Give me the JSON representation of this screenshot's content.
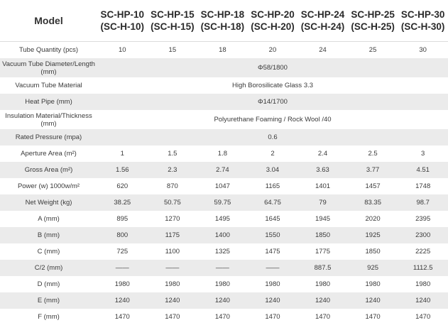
{
  "table": {
    "header_label": "Model",
    "models": [
      {
        "name": "SC-HP-10",
        "alt": "(SC-H-10)"
      },
      {
        "name": "SC-HP-15",
        "alt": "(SC-H-15)"
      },
      {
        "name": "SC-HP-18",
        "alt": "(SC-H-18)"
      },
      {
        "name": "SC-HP-20",
        "alt": "(SC-H-20)"
      },
      {
        "name": "SC-HP-24",
        "alt": "(SC-H-24)"
      },
      {
        "name": "SC-HP-25",
        "alt": "(SC-H-25)"
      },
      {
        "name": "SC-HP-30",
        "alt": "(SC-H-30)"
      }
    ],
    "rows": [
      {
        "label": "Tube Quantity (pcs)",
        "values": [
          "10",
          "15",
          "18",
          "20",
          "24",
          "25",
          "30"
        ]
      },
      {
        "label": "Vacuum Tube Diameter/Length (mm)",
        "merged": "Φ58/1800",
        "tall": true
      },
      {
        "label": "Vacuum Tube Material",
        "merged": "High Borosilicate Glass 3.3"
      },
      {
        "label": "Heat Pipe (mm)",
        "merged": "Φ14/1700"
      },
      {
        "label": "Insulation Material/Thickness (mm)",
        "merged": "Polyurethane Foaming / Rock Wool /40",
        "tall": true
      },
      {
        "label": "Rated Pressure (mpa)",
        "merged": "0.6"
      },
      {
        "label": "Aperture Area (m²)",
        "values": [
          "1",
          "1.5",
          "1.8",
          "2",
          "2.4",
          "2.5",
          "3"
        ]
      },
      {
        "label": "Gross Area (m²)",
        "values": [
          "1.56",
          "2.3",
          "2.74",
          "3.04",
          "3.63",
          "3.77",
          "4.51"
        ]
      },
      {
        "label": "Power  (w) 1000w/m²",
        "values": [
          "620",
          "870",
          "1047",
          "1165",
          "1401",
          "1457",
          "1748"
        ]
      },
      {
        "label": "Net Weight (kg)",
        "values": [
          "38.25",
          "50.75",
          "59.75",
          "64.75",
          "79",
          "83.35",
          "98.7"
        ]
      },
      {
        "label": "A  (mm)",
        "values": [
          "895",
          "1270",
          "1495",
          "1645",
          "1945",
          "2020",
          "2395"
        ]
      },
      {
        "label": "B  (mm)",
        "values": [
          "800",
          "1175",
          "1400",
          "1550",
          "1850",
          "1925",
          "2300"
        ]
      },
      {
        "label": "C  (mm)",
        "values": [
          "725",
          "1100",
          "1325",
          "1475",
          "1775",
          "1850",
          "2225"
        ]
      },
      {
        "label": "C/2 (mm)",
        "values": [
          "——",
          "——",
          "——",
          "——",
          "887.5",
          "925",
          "1112.5"
        ]
      },
      {
        "label": "D  (mm)",
        "values": [
          "1980",
          "1980",
          "1980",
          "1980",
          "1980",
          "1980",
          "1980"
        ]
      },
      {
        "label": "E  (mm)",
        "values": [
          "1240",
          "1240",
          "1240",
          "1240",
          "1240",
          "1240",
          "1240"
        ]
      },
      {
        "label": "F  (mm)",
        "values": [
          "1470",
          "1470",
          "1470",
          "1470",
          "1470",
          "1470",
          "1470"
        ]
      }
    ]
  }
}
